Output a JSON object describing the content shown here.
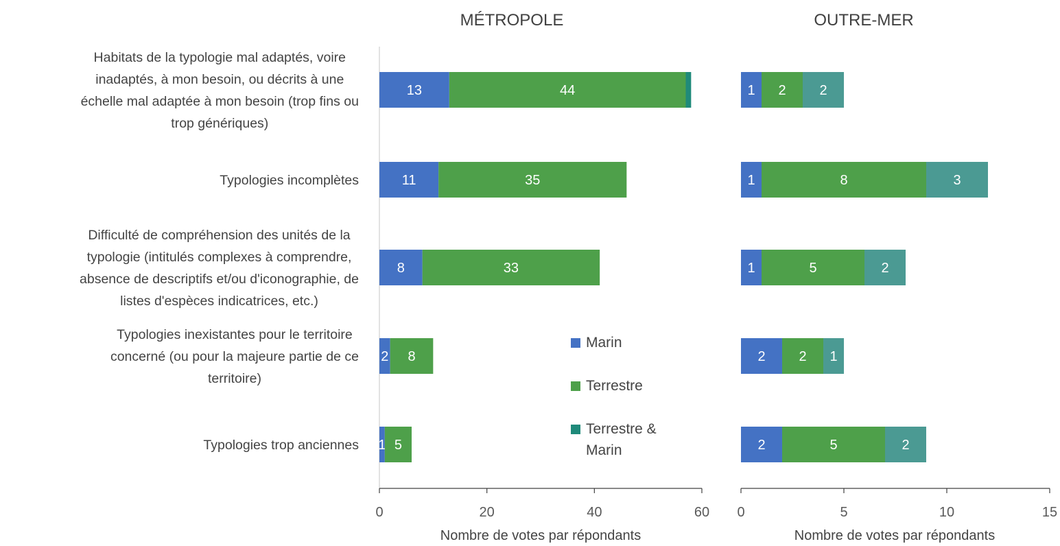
{
  "chart_data": [
    {
      "type": "bar",
      "orientation": "horizontal",
      "stacked": true,
      "title": "MÉTROPOLE",
      "xlabel": "Nombre de votes par répondants",
      "xlim": [
        0,
        60
      ],
      "xticks": [
        "0",
        "20",
        "40",
        "60"
      ],
      "categories": [
        "Habitats de la typologie mal adaptés, voire inadaptés, à  mon besoin, ou décrits à  une échelle mal adaptée à  mon besoin (trop fins ou trop génériques)",
        "Typologies incomplètes",
        "Difficulté de compréhension des unités de la typologie (intitulés complexes à  comprendre, absence de descriptifs et/ou d'iconographie, de listes d'espèces indicatrices, etc.)",
        "Typologies inexistantes pour le territoire concerné (ou pour la majeure partie de ce territoire)",
        "Typologies trop anciennes"
      ],
      "series": [
        {
          "name": "Marin",
          "values": [
            13,
            11,
            8,
            2,
            1
          ],
          "color": "#4472C4"
        },
        {
          "name": "Terrestre",
          "values": [
            44,
            35,
            33,
            8,
            5
          ],
          "color": "#4EA04A"
        },
        {
          "name": "Terrestre & Marin",
          "values": [
            1,
            0,
            0,
            0,
            0
          ],
          "color": "#1F8A7A"
        }
      ],
      "labels": [
        [
          "13",
          "44",
          ""
        ],
        [
          "11",
          "35",
          ""
        ],
        [
          "8",
          "33",
          ""
        ],
        [
          "2",
          "8",
          ""
        ],
        [
          "1",
          "5",
          ""
        ]
      ]
    },
    {
      "type": "bar",
      "orientation": "horizontal",
      "stacked": true,
      "title": "OUTRE-MER",
      "xlabel": "Nombre de votes par répondants",
      "xlim": [
        0,
        15
      ],
      "xticks": [
        "0",
        "5",
        "10",
        "15"
      ],
      "categories": [
        "Habitats de la typologie mal adaptés, voire inadaptés, à  mon besoin, ou décrits à  une échelle mal adaptée à  mon besoin (trop fins ou trop génériques)",
        "Typologies incomplètes",
        "Difficulté de compréhension des unités de la typologie (intitulés complexes à  comprendre, absence de descriptifs et/ou d'iconographie, de listes d'espèces indicatrices, etc.)",
        "Typologies inexistantes pour le territoire concerné (ou pour la majeure partie de ce territoire)",
        "Typologies trop anciennes"
      ],
      "series": [
        {
          "name": "Marin",
          "values": [
            1,
            1,
            1,
            2,
            2
          ],
          "color": "#4472C4"
        },
        {
          "name": "Terrestre",
          "values": [
            2,
            8,
            5,
            2,
            5
          ],
          "color": "#4EA04A"
        },
        {
          "name": "Terrestre & Marin",
          "values": [
            2,
            3,
            2,
            1,
            2
          ],
          "color": "#4B9A93"
        }
      ],
      "labels": [
        [
          "1",
          "2",
          "2"
        ],
        [
          "1",
          "8",
          "3"
        ],
        [
          "1",
          "5",
          "2"
        ],
        [
          "2",
          "2",
          "1"
        ],
        [
          "2",
          "5",
          "2"
        ]
      ]
    }
  ],
  "category_lines": [
    [
      "Habitats de la typologie mal adaptés, voire",
      "inadaptés, à  mon besoin, ou décrits à  une",
      "échelle mal adaptée à  mon besoin (trop fins ou",
      "trop génériques)"
    ],
    [
      "Typologies incomplètes"
    ],
    [
      "Difficulté de compréhension des unités de la",
      "typologie (intitulés complexes à  comprendre,",
      "absence de descriptifs et/ou d'iconographie, de",
      "listes d'espèces indicatrices, etc.)"
    ],
    [
      "Typologies inexistantes pour le territoire",
      "concerné (ou pour la majeure partie de ce",
      "territoire)"
    ],
    [
      "Typologies trop anciennes"
    ]
  ],
  "legend": {
    "placement": "between-panels",
    "items": [
      {
        "label_lines": [
          "Marin"
        ],
        "color": "#4472C4"
      },
      {
        "label_lines": [
          "Terrestre"
        ],
        "color": "#4EA04A"
      },
      {
        "label_lines": [
          "Terrestre &",
          "Marin"
        ],
        "color": "#1F8A7A"
      }
    ]
  }
}
